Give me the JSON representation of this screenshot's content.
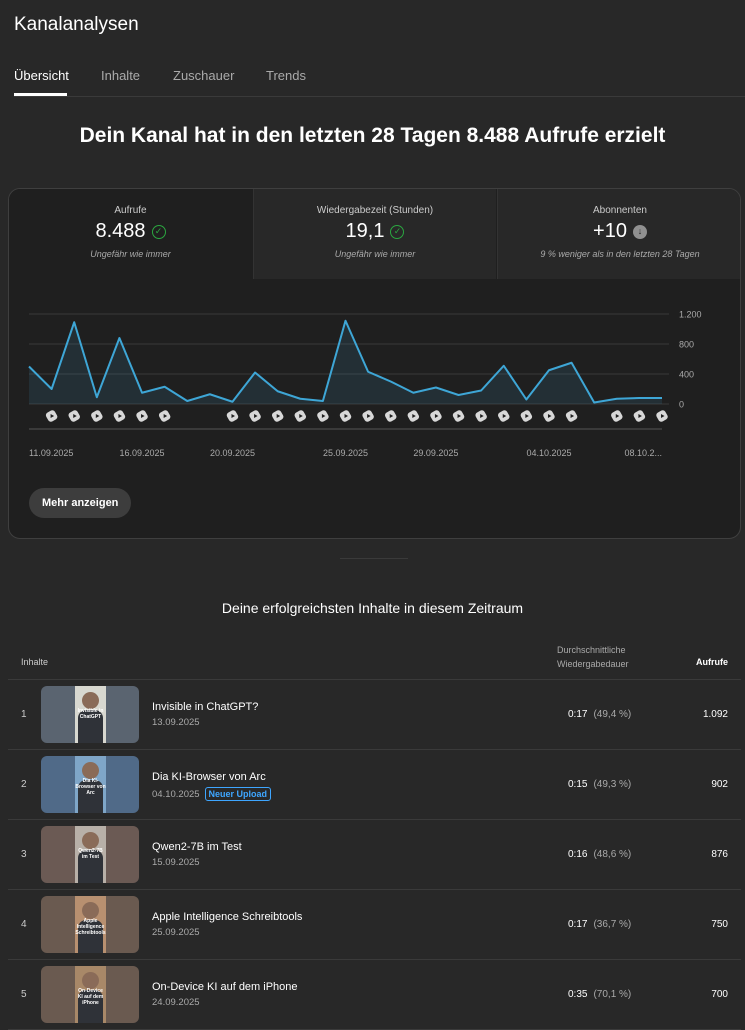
{
  "app": {
    "title": "Kanalanalysen"
  },
  "tabs": [
    {
      "label": "Übersicht",
      "active": true
    },
    {
      "label": "Inhalte",
      "active": false
    },
    {
      "label": "Zuschauer",
      "active": false
    },
    {
      "label": "Trends",
      "active": false
    }
  ],
  "headline": "Dein Kanal hat in den letzten 28 Tagen 8.488 Aufrufe erzielt",
  "metrics": [
    {
      "label": "Aufrufe",
      "value": "8.488",
      "icon": "check-circle-icon",
      "note": "Ungefähr wie immer"
    },
    {
      "label": "Wiedergabezeit (Stunden)",
      "value": "19,1",
      "icon": "check-circle-icon",
      "note": "Ungefähr wie immer"
    },
    {
      "label": "Abonnenten",
      "value": "+10",
      "icon": "arrow-down-circle-icon",
      "note": "9 % weniger als in den letzten 28 Tagen"
    }
  ],
  "chart_data": {
    "type": "line",
    "x": [
      "11.09.2025",
      "12.09.2025",
      "13.09.2025",
      "14.09.2025",
      "15.09.2025",
      "16.09.2025",
      "17.09.2025",
      "18.09.2025",
      "19.09.2025",
      "20.09.2025",
      "21.09.2025",
      "22.09.2025",
      "23.09.2025",
      "24.09.2025",
      "25.09.2025",
      "26.09.2025",
      "27.09.2025",
      "28.09.2025",
      "29.09.2025",
      "30.09.2025",
      "01.10.2025",
      "02.10.2025",
      "03.10.2025",
      "04.10.2025",
      "05.10.2025",
      "06.10.2025",
      "07.10.2025",
      "08.10.2025",
      "09.10.2025"
    ],
    "values": [
      500,
      200,
      1090,
      90,
      880,
      150,
      230,
      40,
      130,
      30,
      420,
      170,
      70,
      40,
      1110,
      430,
      300,
      150,
      220,
      120,
      180,
      510,
      60,
      450,
      550,
      20,
      70,
      80,
      80
    ],
    "ylim": [
      0,
      1200
    ],
    "yticks": [
      0,
      400,
      800,
      1200
    ],
    "ytick_labels": [
      "0",
      "400",
      "800",
      "1.200"
    ],
    "xtick_labels": [
      "11.09.2025",
      "16.09.2025",
      "20.09.2025",
      "25.09.2025",
      "29.09.2025",
      "04.10.2025",
      "08.10.2..."
    ],
    "xtick_index": [
      0,
      5,
      9,
      14,
      18,
      23,
      27
    ],
    "upload_marker_index": [
      1,
      2,
      3,
      4,
      5,
      6,
      9,
      10,
      11,
      12,
      13,
      14,
      15,
      16,
      17,
      18,
      19,
      20,
      21,
      22,
      23,
      24,
      26,
      27,
      28
    ],
    "upload_marker_icon": "shorts-icon",
    "line_color": "#3ea6d6",
    "grid": true
  },
  "more_button": "Mehr anzeigen",
  "section_title": "Deine erfolgreichsten Inhalte in diesem Zeitraum",
  "table": {
    "col_content": "Inhalte",
    "col_duration": "Durchschnittliche Wiedergabedauer",
    "col_views": "Aufrufe",
    "rows": [
      {
        "rank": "1",
        "title": "Invisible in ChatGPT?",
        "date": "13.09.2025",
        "badge": "",
        "thumb_text": "Invisible in ChatGPT",
        "thumb_bg": "#5a6470",
        "thumb_fg": "#d8d8d0",
        "duration": "0:17",
        "pct": "(49,4 %)",
        "views": "1.092"
      },
      {
        "rank": "2",
        "title": "Dia KI-Browser von Arc",
        "date": "04.10.2025",
        "badge": "Neuer Upload",
        "thumb_text": "Dia KI-Browser von Arc",
        "thumb_bg": "#506a88",
        "thumb_fg": "#7fa6c8",
        "duration": "0:15",
        "pct": "(49,3 %)",
        "views": "902"
      },
      {
        "rank": "3",
        "title": "Qwen2-7B im Test",
        "date": "15.09.2025",
        "badge": "",
        "thumb_text": "Qwen2-7B im Test",
        "thumb_bg": "#6b5a54",
        "thumb_fg": "#b8b0a8",
        "duration": "0:16",
        "pct": "(48,6 %)",
        "views": "876"
      },
      {
        "rank": "4",
        "title": "Apple Intelligence Schreibtools",
        "date": "25.09.2025",
        "badge": "",
        "thumb_text": "Apple Intelligence Schreibtools",
        "thumb_bg": "#6a5a50",
        "thumb_fg": "#b89070",
        "duration": "0:17",
        "pct": "(36,7 %)",
        "views": "750"
      },
      {
        "rank": "5",
        "title": "On-Device KI auf dem iPhone",
        "date": "24.09.2025",
        "badge": "",
        "thumb_text": "On-Device KI auf dem iPhone",
        "thumb_bg": "#6a5a50",
        "thumb_fg": "#a88868",
        "duration": "0:35",
        "pct": "(70,1 %)",
        "views": "700"
      }
    ]
  }
}
